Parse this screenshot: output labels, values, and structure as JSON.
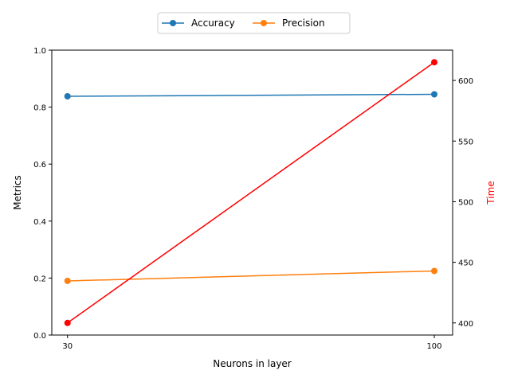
{
  "chart_data": {
    "type": "line",
    "xlabel": "Neurons in layer",
    "ylabel": "Metrics",
    "y2label": "Time",
    "x": [
      30,
      100
    ],
    "xlim": [
      27,
      103.5
    ],
    "ylim": [
      0,
      1
    ],
    "y2lim": [
      390,
      625
    ],
    "xticks": [
      "30",
      "100"
    ],
    "yticks": [
      "0.0",
      "0.2",
      "0.4",
      "0.6",
      "0.8",
      "1.0"
    ],
    "y2ticks": [
      "400",
      "450",
      "500",
      "550",
      "600"
    ],
    "series": [
      {
        "name": "Accuracy",
        "axis": "left",
        "values": [
          0.838,
          0.845
        ],
        "color": "#1f77b4"
      },
      {
        "name": "Precision",
        "axis": "left",
        "values": [
          0.19,
          0.225
        ],
        "color": "#ff7f0e"
      },
      {
        "axis": "right",
        "values": [
          400,
          615
        ],
        "color": "#ff0000"
      }
    ],
    "legend": {
      "placement": "top-center",
      "entries": [
        "Accuracy",
        "Precision"
      ]
    },
    "y2label_color": "#ff0000",
    "grid": false
  }
}
